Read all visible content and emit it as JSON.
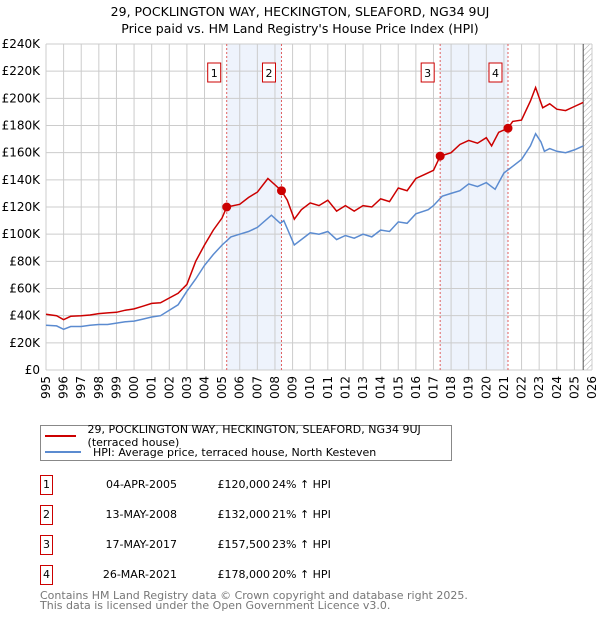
{
  "chart_data": {
    "type": "line",
    "title": "29, POCKLINGTON WAY, HECKINGTON, SLEAFORD, NG34 9UJ",
    "subtitle": "Price paid vs. HM Land Registry's House Price Index (HPI)",
    "xlim": [
      1995,
      2026
    ],
    "ylim": [
      0,
      240000
    ],
    "y_ticks": [
      0,
      20000,
      40000,
      60000,
      80000,
      100000,
      120000,
      140000,
      160000,
      180000,
      200000,
      220000,
      240000
    ],
    "y_tick_labels": [
      "£0",
      "£20K",
      "£40K",
      "£60K",
      "£80K",
      "£100K",
      "£120K",
      "£140K",
      "£160K",
      "£180K",
      "£200K",
      "£220K",
      "£240K"
    ],
    "x_ticks": [
      1995,
      1996,
      1997,
      1998,
      1999,
      2000,
      2001,
      2002,
      2003,
      2004,
      2005,
      2006,
      2007,
      2008,
      2009,
      2010,
      2011,
      2012,
      2013,
      2014,
      2015,
      2016,
      2017,
      2018,
      2019,
      2020,
      2021,
      2022,
      2023,
      2024,
      2025,
      2026
    ],
    "grid": true,
    "colors": {
      "property": "#cc0000",
      "hpi": "#5b8bd0",
      "shade": "#eef3fc",
      "vline": "#e06060"
    },
    "series": [
      {
        "name": "29, POCKLINGTON WAY, HECKINGTON, SLEAFORD, NG34 9UJ (terraced house)",
        "color": "#cc0000",
        "x": [
          1995,
          1995.6,
          1996,
          1996.4,
          1997,
          1997.5,
          1998,
          1998.5,
          1999,
          1999.5,
          2000,
          2000.5,
          2001,
          2001.5,
          2002,
          2002.5,
          2003,
          2003.5,
          2004,
          2004.5,
          2005,
          2005.26,
          2006,
          2006.5,
          2007,
          2007.6,
          2008.37,
          2008.7,
          2009.1,
          2009.5,
          2010,
          2010.5,
          2011,
          2011.5,
          2012,
          2012.5,
          2013,
          2013.5,
          2014,
          2014.5,
          2015,
          2015.5,
          2016,
          2016.5,
          2017,
          2017.38,
          2018,
          2018.5,
          2019,
          2019.5,
          2020,
          2020.3,
          2020.7,
          2021.23,
          2021.5,
          2022,
          2022.5,
          2022.8,
          2023.2,
          2023.6,
          2024,
          2024.5,
          2025,
          2025.5
        ],
        "y": [
          41000,
          40000,
          37000,
          39500,
          40000,
          40500,
          41500,
          42000,
          42500,
          44000,
          45000,
          47000,
          49000,
          49500,
          53000,
          56500,
          63000,
          80000,
          92000,
          103000,
          112000,
          120000,
          122000,
          127000,
          131000,
          141000,
          132000,
          125000,
          111000,
          118000,
          123000,
          121000,
          125000,
          117000,
          121000,
          117000,
          121000,
          120000,
          126000,
          124000,
          134000,
          132000,
          141000,
          144000,
          147000,
          157500,
          160000,
          166000,
          169000,
          167000,
          171000,
          165000,
          175000,
          178000,
          183000,
          184000,
          198000,
          208000,
          193000,
          196000,
          192000,
          191000,
          194000,
          197000
        ]
      },
      {
        "name": "HPI: Average price, terraced house, North Kesteven",
        "color": "#5b8bd0",
        "x": [
          1995,
          1995.6,
          1996,
          1996.4,
          1997,
          1997.5,
          1998,
          1998.5,
          1999,
          1999.5,
          2000,
          2000.5,
          2001,
          2001.5,
          2002,
          2002.5,
          2003,
          2003.5,
          2004,
          2004.5,
          2005,
          2005.5,
          2006,
          2006.5,
          2007,
          2007.8,
          2008.3,
          2008.5,
          2009.1,
          2009.7,
          2010,
          2010.5,
          2011,
          2011.5,
          2012,
          2012.5,
          2013,
          2013.5,
          2014,
          2014.5,
          2015,
          2015.5,
          2016,
          2016.7,
          2017,
          2017.5,
          2018,
          2018.5,
          2019,
          2019.5,
          2020,
          2020.5,
          2021,
          2021.5,
          2022,
          2022.5,
          2022.8,
          2023.1,
          2023.3,
          2023.6,
          2024,
          2024.5,
          2025,
          2025.5
        ],
        "y": [
          33000,
          32500,
          30000,
          32000,
          32000,
          33000,
          33500,
          33500,
          34500,
          35500,
          36000,
          37500,
          39000,
          40000,
          44000,
          48000,
          58000,
          67000,
          77000,
          85000,
          92000,
          98000,
          100000,
          102000,
          105000,
          114000,
          108000,
          110000,
          92000,
          98000,
          101000,
          100000,
          102000,
          96000,
          99000,
          97000,
          100000,
          98000,
          103000,
          102000,
          109000,
          108000,
          115000,
          118000,
          121000,
          128000,
          130000,
          132000,
          137000,
          135000,
          138000,
          133000,
          145000,
          150000,
          155000,
          165000,
          174000,
          168000,
          161000,
          163000,
          161000,
          160000,
          162000,
          165000
        ]
      }
    ],
    "shaded_ranges": [
      [
        2005.26,
        2008.37
      ],
      [
        2017.38,
        2021.23
      ]
    ],
    "forecast_hatch_from": 2025.5,
    "sales": [
      {
        "label": "1",
        "x": 2005.26,
        "y": 120000
      },
      {
        "label": "2",
        "x": 2008.37,
        "y": 132000
      },
      {
        "label": "3",
        "x": 2017.38,
        "y": 157500
      },
      {
        "label": "4",
        "x": 2021.23,
        "y": 178000
      }
    ]
  },
  "legend": {
    "property": "29, POCKLINGTON WAY, HECKINGTON, SLEAFORD, NG34 9UJ (terraced house)",
    "hpi": "HPI: Average price, terraced house, North Kesteven"
  },
  "transactions": [
    {
      "num": "1",
      "date": "04-APR-2005",
      "price": "£120,000",
      "hpi": "24% ↑ HPI"
    },
    {
      "num": "2",
      "date": "13-MAY-2008",
      "price": "£132,000",
      "hpi": "21% ↑ HPI"
    },
    {
      "num": "3",
      "date": "17-MAY-2017",
      "price": "£157,500",
      "hpi": "23% ↑ HPI"
    },
    {
      "num": "4",
      "date": "26-MAR-2021",
      "price": "£178,000",
      "hpi": "20% ↑ HPI"
    }
  ],
  "footer": {
    "line1": "Contains HM Land Registry data © Crown copyright and database right 2025.",
    "line2": "This data is licensed under the Open Government Licence v3.0."
  }
}
